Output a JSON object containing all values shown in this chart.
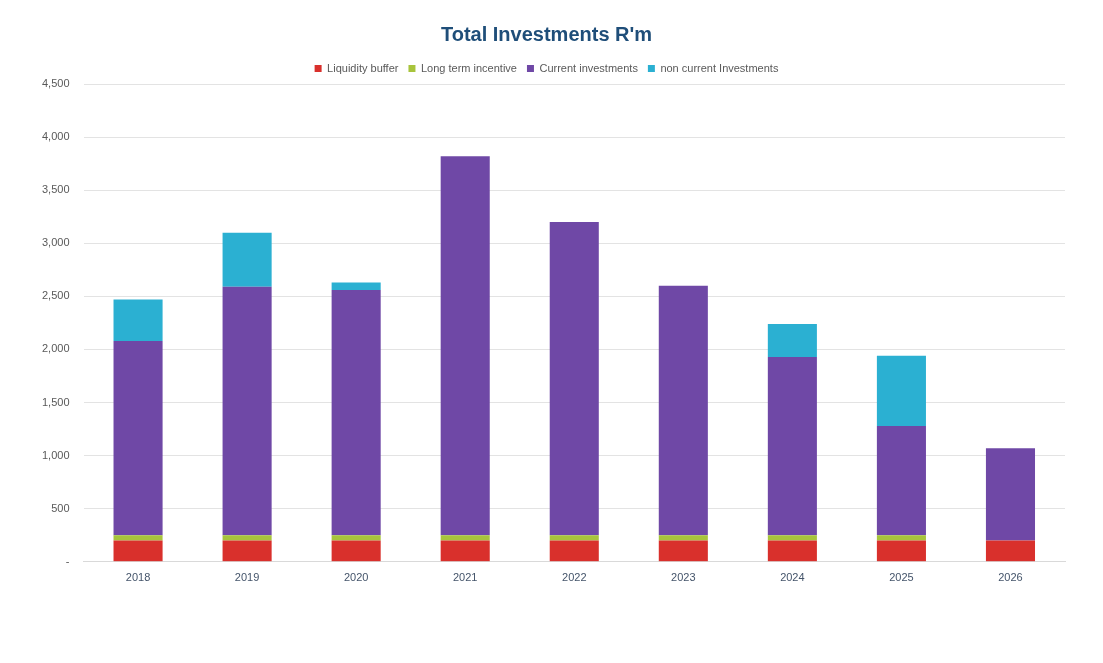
{
  "chart_data": {
    "type": "bar",
    "title": "Total Investments R'm",
    "stacked": true,
    "categories": [
      "2018",
      "2019",
      "2020",
      "2021",
      "2022",
      "2023",
      "2024",
      "2025",
      "2026"
    ],
    "series": [
      {
        "name": "Liquidity buffer",
        "color": "#d9302c",
        "values": [
          200,
          200,
          200,
          200,
          200,
          200,
          200,
          200,
          200
        ]
      },
      {
        "name": "Long term incentive",
        "color": "#a8c43c",
        "values": [
          50,
          50,
          50,
          50,
          50,
          50,
          50,
          50,
          0
        ]
      },
      {
        "name": "Current investments",
        "color": "#6f48a6",
        "values": [
          1830,
          2340,
          2310,
          3570,
          2950,
          2350,
          1680,
          1030,
          870
        ]
      },
      {
        "name": "non current Investments",
        "color": "#2bb0d2",
        "values": [
          390,
          510,
          70,
          0,
          0,
          0,
          310,
          660,
          0
        ]
      }
    ],
    "ylim": [
      0,
      4500
    ],
    "yticks": [
      {
        "value": 0,
        "label": "-"
      },
      {
        "value": 500,
        "label": "500"
      },
      {
        "value": 1000,
        "label": "1,000"
      },
      {
        "value": 1500,
        "label": "1,500"
      },
      {
        "value": 2000,
        "label": "2,000"
      },
      {
        "value": 2500,
        "label": "2,500"
      },
      {
        "value": 3000,
        "label": "3,000"
      },
      {
        "value": 3500,
        "label": "3,500"
      },
      {
        "value": 4000,
        "label": "4,000"
      },
      {
        "value": 4500,
        "label": "4,500"
      }
    ],
    "grid": "y",
    "legend": "top"
  }
}
